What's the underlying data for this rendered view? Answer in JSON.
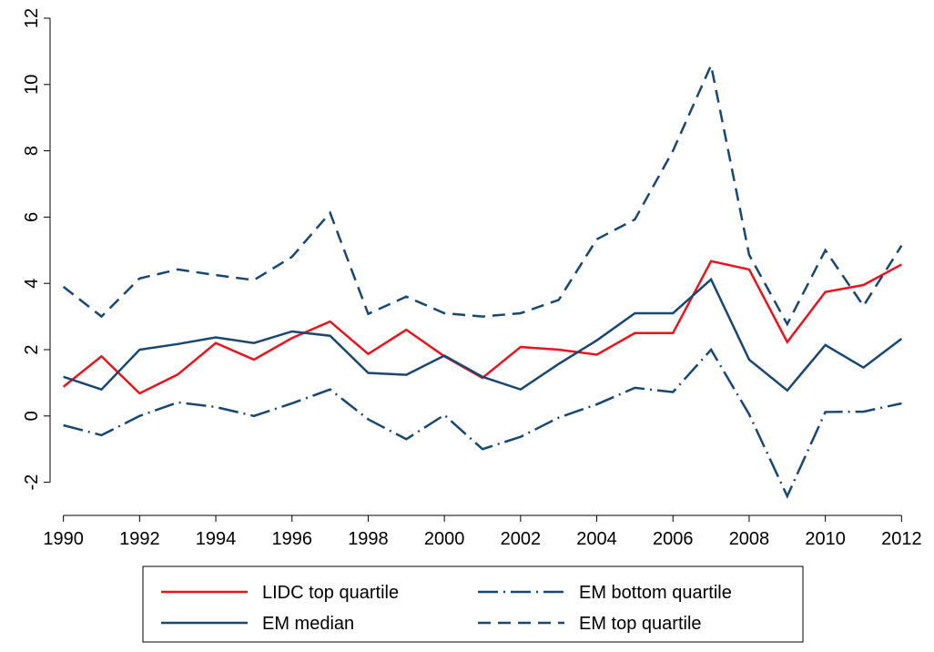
{
  "chart_data": {
    "type": "line",
    "x": [
      1990,
      1991,
      1992,
      1993,
      1994,
      1995,
      1996,
      1997,
      1998,
      1999,
      2000,
      2001,
      2002,
      2003,
      2004,
      2005,
      2006,
      2007,
      2008,
      2009,
      2010,
      2011,
      2012
    ],
    "series": [
      {
        "name": "LIDC top quartile",
        "color": "#e8141e",
        "style": "solid",
        "values": [
          0.88,
          1.8,
          0.68,
          1.25,
          2.2,
          1.7,
          2.35,
          2.85,
          1.87,
          2.6,
          1.8,
          1.15,
          2.08,
          2.0,
          1.85,
          2.5,
          2.5,
          4.67,
          4.42,
          2.23,
          3.74,
          3.95,
          4.57
        ]
      },
      {
        "name": "EM bottom quartile",
        "color": "#1a476f",
        "style": "dashdot",
        "values": [
          -0.28,
          -0.58,
          0.0,
          0.41,
          0.27,
          0.0,
          0.38,
          0.8,
          -0.1,
          -0.7,
          0.03,
          -1.0,
          -0.63,
          -0.05,
          0.35,
          0.85,
          0.72,
          2.0,
          0.05,
          -2.42,
          0.12,
          0.13,
          0.38
        ]
      },
      {
        "name": "EM median",
        "color": "#1a476f",
        "style": "solid",
        "values": [
          1.18,
          0.8,
          2.0,
          2.17,
          2.37,
          2.2,
          2.55,
          2.42,
          1.3,
          1.24,
          1.82,
          1.18,
          0.8,
          1.57,
          2.28,
          3.1,
          3.1,
          4.12,
          1.7,
          0.77,
          2.14,
          1.46,
          2.33
        ]
      },
      {
        "name": "EM top quartile",
        "color": "#1a476f",
        "style": "dash",
        "values": [
          3.9,
          3.0,
          4.15,
          4.42,
          4.25,
          4.1,
          4.8,
          6.13,
          3.08,
          3.6,
          3.1,
          3.0,
          3.1,
          3.5,
          5.33,
          5.93,
          8.0,
          10.58,
          4.86,
          2.77,
          5.0,
          3.32,
          5.14
        ]
      }
    ],
    "xlim": [
      1989.65,
      2012.35
    ],
    "xticks": [
      1990,
      1992,
      1994,
      1996,
      1998,
      2000,
      2002,
      2004,
      2006,
      2008,
      2010,
      2012
    ],
    "ylim": [
      -3,
      12
    ],
    "yticks": [
      -2,
      0,
      2,
      4,
      6,
      8,
      10,
      12
    ]
  }
}
